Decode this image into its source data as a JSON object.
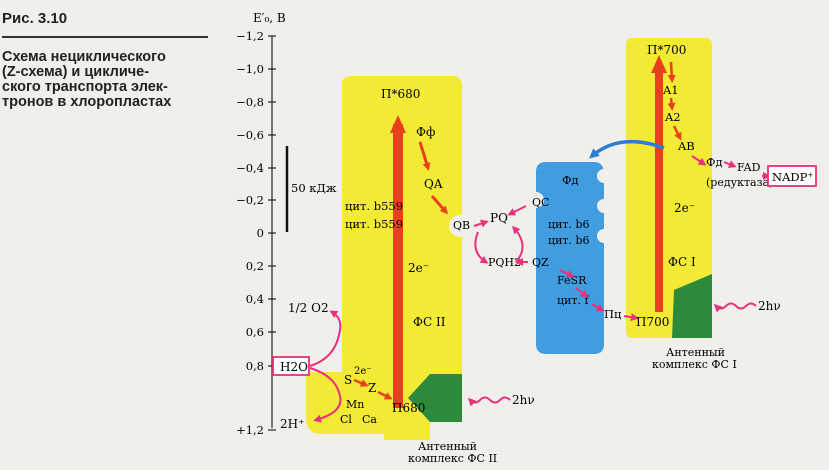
{
  "caption": {
    "figure_number": "Рис. 3.10",
    "lines": [
      "Схема нециклического",
      "(Z-схема) и цикличе-",
      "ского транспорта элек-",
      "тронов в хлоропластах"
    ]
  },
  "axis": {
    "label": "E′₀, В",
    "ticks": [
      "−1,2",
      "−1,0",
      "−0,8",
      "−0,6",
      "−0,4",
      "−0,2",
      "0",
      "0,2",
      "0,4",
      "0,6",
      "0,8",
      "+1,2"
    ]
  },
  "scale_bar": {
    "label": "50 кДж"
  },
  "ps2": {
    "p680_star": "П*680",
    "pheo": "Фф",
    "qa": "QA",
    "cyt1": "цит. b559",
    "cyt2": "цит. b559",
    "electrons": "2e⁻",
    "name": "ФС II",
    "p680": "П680",
    "antenna": [
      "Антенный",
      "комплекс ФС II"
    ]
  },
  "wos": {
    "h2o": "H2O",
    "o2": "1/2 O2",
    "h": "2H⁺",
    "s": "S",
    "z": "Z",
    "e2": "2e⁻",
    "mn": "Mn",
    "cl": "Cl",
    "ca": "Ca"
  },
  "pq": {
    "qb": "QB",
    "pq": "PQ",
    "pqh2": "PQH2",
    "qc": "QC",
    "qz": "QZ"
  },
  "cytbf": {
    "fd": "Фд",
    "cyt_b6_1": "цит. b6",
    "cyt_b6_2": "цит. b6",
    "fes": "FeSR",
    "cyt_f": "цит. f",
    "pc": "Пц"
  },
  "ps1": {
    "p700_star": "П*700",
    "a1": "A1",
    "a2": "A2",
    "ab": "AB",
    "electrons": "2e⁻",
    "name": "ФС I",
    "p700": "П700",
    "antenna": [
      "Антенный",
      "комплекс ФС I"
    ]
  },
  "ferredoxin": {
    "fd": "Фд",
    "fad": "FAD",
    "reductase": "(редуктаза)",
    "nadp": "NADP⁺"
  },
  "light": {
    "ps2": "2hν",
    "ps1": "2hν"
  },
  "colors": {
    "yellow": "#f2ea35",
    "blue": "#3f9de0",
    "green": "#2d8a3a",
    "red": "#e8401c",
    "pink": "#e8327a",
    "black": "#1a1a1a"
  }
}
